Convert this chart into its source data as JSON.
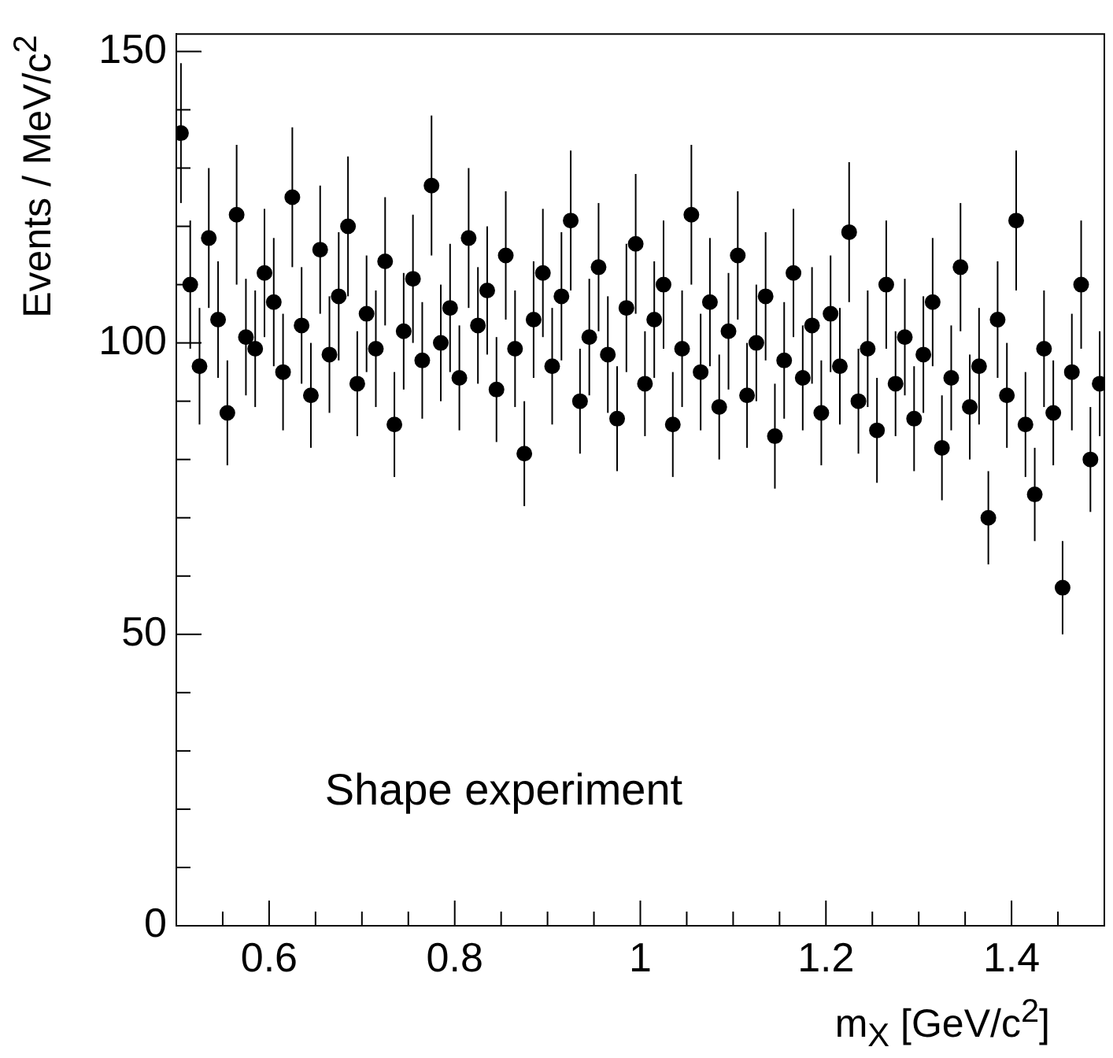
{
  "chart_data": {
    "type": "scatter",
    "xlabel": "m$_{X}$ [GeV/c$^{2}$]",
    "ylabel": "Events / MeV/c$^{2}$",
    "annotations": [
      "Shape experiment"
    ],
    "marker": "circle",
    "color": "#000000",
    "x": [
      0.505,
      0.515,
      0.525,
      0.535,
      0.545,
      0.555,
      0.565,
      0.575,
      0.585,
      0.595,
      0.605,
      0.615,
      0.625,
      0.635,
      0.645,
      0.655,
      0.665,
      0.675,
      0.685,
      0.695,
      0.705,
      0.715,
      0.725,
      0.735,
      0.745,
      0.755,
      0.765,
      0.775,
      0.785,
      0.795,
      0.805,
      0.815,
      0.825,
      0.835,
      0.845,
      0.855,
      0.865,
      0.875,
      0.885,
      0.895,
      0.905,
      0.915,
      0.925,
      0.935,
      0.945,
      0.955,
      0.965,
      0.975,
      0.985,
      0.995,
      1.005,
      1.015,
      1.025,
      1.035,
      1.045,
      1.055,
      1.065,
      1.075,
      1.085,
      1.095,
      1.105,
      1.115,
      1.125,
      1.135,
      1.145,
      1.155,
      1.165,
      1.175,
      1.185,
      1.195,
      1.205,
      1.215,
      1.225,
      1.235,
      1.245,
      1.255,
      1.265,
      1.275,
      1.285,
      1.295,
      1.305,
      1.315,
      1.325,
      1.335,
      1.345,
      1.355,
      1.365,
      1.375,
      1.385,
      1.395,
      1.405,
      1.415,
      1.425,
      1.435,
      1.445,
      1.455,
      1.465,
      1.475,
      1.485,
      1.495
    ],
    "values": [
      136,
      110,
      96,
      118,
      104,
      88,
      122,
      101,
      99,
      112,
      107,
      95,
      125,
      103,
      91,
      116,
      98,
      108,
      120,
      93,
      105,
      99,
      114,
      86,
      102,
      111,
      97,
      127,
      100,
      106,
      94,
      118,
      103,
      109,
      92,
      115,
      99,
      81,
      104,
      112,
      96,
      108,
      121,
      90,
      101,
      113,
      98,
      87,
      106,
      117,
      93,
      104,
      110,
      86,
      99,
      122,
      95,
      107,
      89,
      102,
      115,
      91,
      100,
      108,
      84,
      97,
      112,
      94,
      103,
      88,
      105,
      96,
      119,
      90,
      99,
      85,
      110,
      93,
      101,
      87,
      98,
      107,
      82,
      94,
      113,
      89,
      96,
      70,
      104,
      91,
      121,
      86,
      74,
      99,
      88,
      58,
      95,
      110,
      80,
      93
    ],
    "errors": [
      12,
      11,
      10,
      12,
      10,
      9,
      12,
      10,
      10,
      11,
      11,
      10,
      12,
      10,
      9,
      11,
      10,
      11,
      12,
      9,
      10,
      10,
      11,
      9,
      10,
      11,
      10,
      12,
      10,
      11,
      9,
      12,
      10,
      11,
      9,
      11,
      10,
      9,
      10,
      11,
      10,
      11,
      12,
      9,
      10,
      11,
      10,
      9,
      11,
      12,
      9,
      10,
      11,
      9,
      10,
      12,
      10,
      11,
      9,
      10,
      11,
      9,
      10,
      11,
      9,
      10,
      11,
      9,
      10,
      9,
      10,
      10,
      12,
      9,
      10,
      9,
      11,
      9,
      10,
      9,
      10,
      11,
      9,
      9,
      11,
      9,
      10,
      8,
      10,
      9,
      12,
      9,
      8,
      10,
      9,
      8,
      10,
      11,
      9,
      9
    ],
    "xlim": [
      0.5,
      1.5
    ],
    "ylim": [
      0,
      153
    ],
    "xticks": [
      {
        "value": 0.55,
        "label": null
      },
      0.6,
      {
        "value": 0.65,
        "label": null
      },
      {
        "value": 0.7,
        "label": null
      },
      {
        "value": 0.75,
        "label": null
      },
      0.8,
      {
        "value": 0.85,
        "label": null
      },
      {
        "value": 0.9,
        "label": null
      },
      {
        "value": 0.95,
        "label": null
      },
      1,
      {
        "value": 1.05,
        "label": null
      },
      {
        "value": 1.1,
        "label": null
      },
      {
        "value": 1.15,
        "label": null
      },
      1.2,
      {
        "value": 1.25,
        "label": null
      },
      {
        "value": 1.3,
        "label": null
      },
      {
        "value": 1.35,
        "label": null
      },
      1.4,
      {
        "value": 1.45,
        "label": null
      }
    ],
    "yticks": [
      0,
      {
        "value": 10,
        "label": null
      },
      {
        "value": 20,
        "label": null
      },
      {
        "value": 30,
        "label": null
      },
      {
        "value": 40,
        "label": null
      },
      50,
      {
        "value": 60,
        "label": null
      },
      {
        "value": 70,
        "label": null
      },
      {
        "value": 80,
        "label": null
      },
      {
        "value": 90,
        "label": null
      },
      100,
      {
        "value": 110,
        "label": null
      },
      {
        "value": 120,
        "label": null
      },
      {
        "value": 130,
        "label": null
      },
      {
        "value": 140,
        "label": null
      },
      150
    ]
  }
}
